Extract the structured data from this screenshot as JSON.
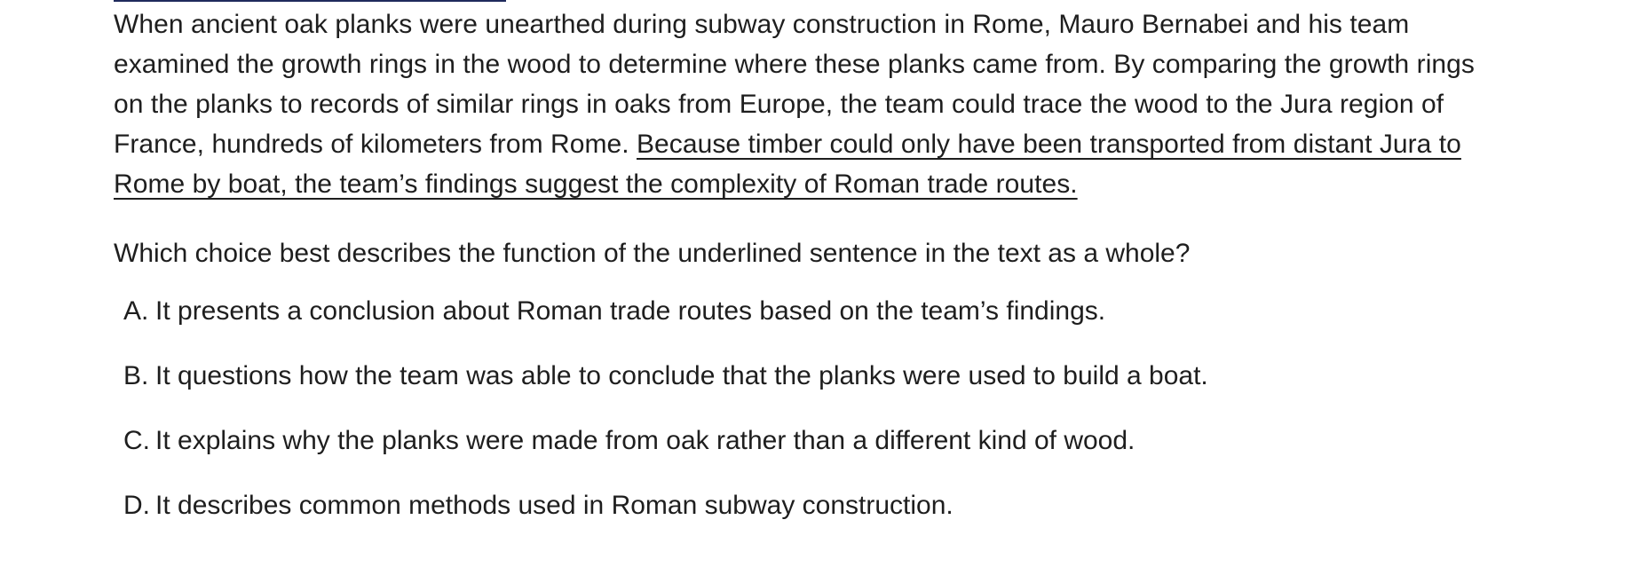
{
  "passage": {
    "intro_text": "When ancient oak planks were unearthed during subway construction in Rome, Mauro Bernabei and his team examined the growth rings in the wood to determine where these planks came from. By comparing the growth rings on the planks to records of similar rings in oaks from Europe, the team could trace the wood to the Jura region of France, hundreds of kilometers from Rome. ",
    "underlined_sentence": "Because timber could only have been transported from distant Jura to Rome by boat, the team’s findings suggest the complexity of Roman trade routes."
  },
  "question": {
    "text": "Which choice best describes the function of the underlined sentence in the text as a whole?"
  },
  "choices": [
    {
      "letter": "A.",
      "text": "It presents a conclusion about Roman trade routes based on the team’s findings."
    },
    {
      "letter": "B.",
      "text": "It questions how the team was able to conclude that the planks were used to build a boat."
    },
    {
      "letter": "C.",
      "text": "It explains why the planks were made from oak rather than a different kind of wood."
    },
    {
      "letter": "D.",
      "text": "It describes common methods used in Roman subway construction."
    }
  ],
  "colors": {
    "text": "#1e1e1e",
    "top_rule": "#1f2a5c",
    "background": "#ffffff"
  }
}
